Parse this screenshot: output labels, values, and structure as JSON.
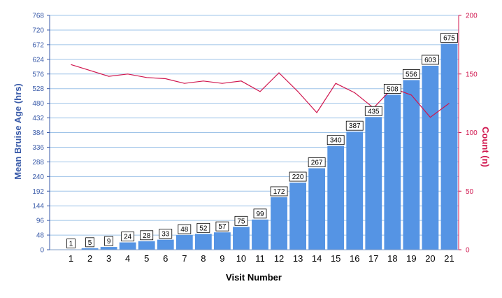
{
  "chart_data": {
    "type": "bar",
    "title": "",
    "xlabel": "Visit Number",
    "ylabel": "Mean Bruise Age (hrs)",
    "y2label": "Count (n)",
    "categories": [
      "1",
      "2",
      "3",
      "4",
      "5",
      "6",
      "7",
      "8",
      "9",
      "10",
      "11",
      "12",
      "13",
      "14",
      "15",
      "16",
      "17",
      "18",
      "19",
      "20",
      "21"
    ],
    "series": [
      {
        "type": "bar",
        "axis": "left",
        "values": [
          1,
          5,
          9,
          24,
          28,
          33,
          48,
          52,
          57,
          75,
          99,
          172,
          220,
          267,
          340,
          387,
          435,
          508,
          556,
          603,
          675
        ],
        "color": "#5594e4"
      },
      {
        "type": "line",
        "axis": "right",
        "values": [
          158,
          153,
          148,
          150,
          147,
          146,
          142,
          144,
          142,
          144,
          135,
          151,
          135,
          117,
          142,
          134,
          121,
          138,
          132,
          113,
          125
        ],
        "color": "#d0164e"
      }
    ],
    "ylim": [
      0,
      768
    ],
    "yticks": [
      0,
      48,
      96,
      144,
      192,
      240,
      288,
      336,
      384,
      432,
      480,
      528,
      576,
      624,
      672,
      720,
      768
    ],
    "y2lim": [
      0,
      200
    ],
    "y2ticks": [
      0,
      50,
      100,
      150,
      200
    ],
    "grid": true,
    "gridColor": "#9ec3e8",
    "leftAxisColor": "#3a5ba9",
    "rightAxisColor": "#d0164e"
  }
}
